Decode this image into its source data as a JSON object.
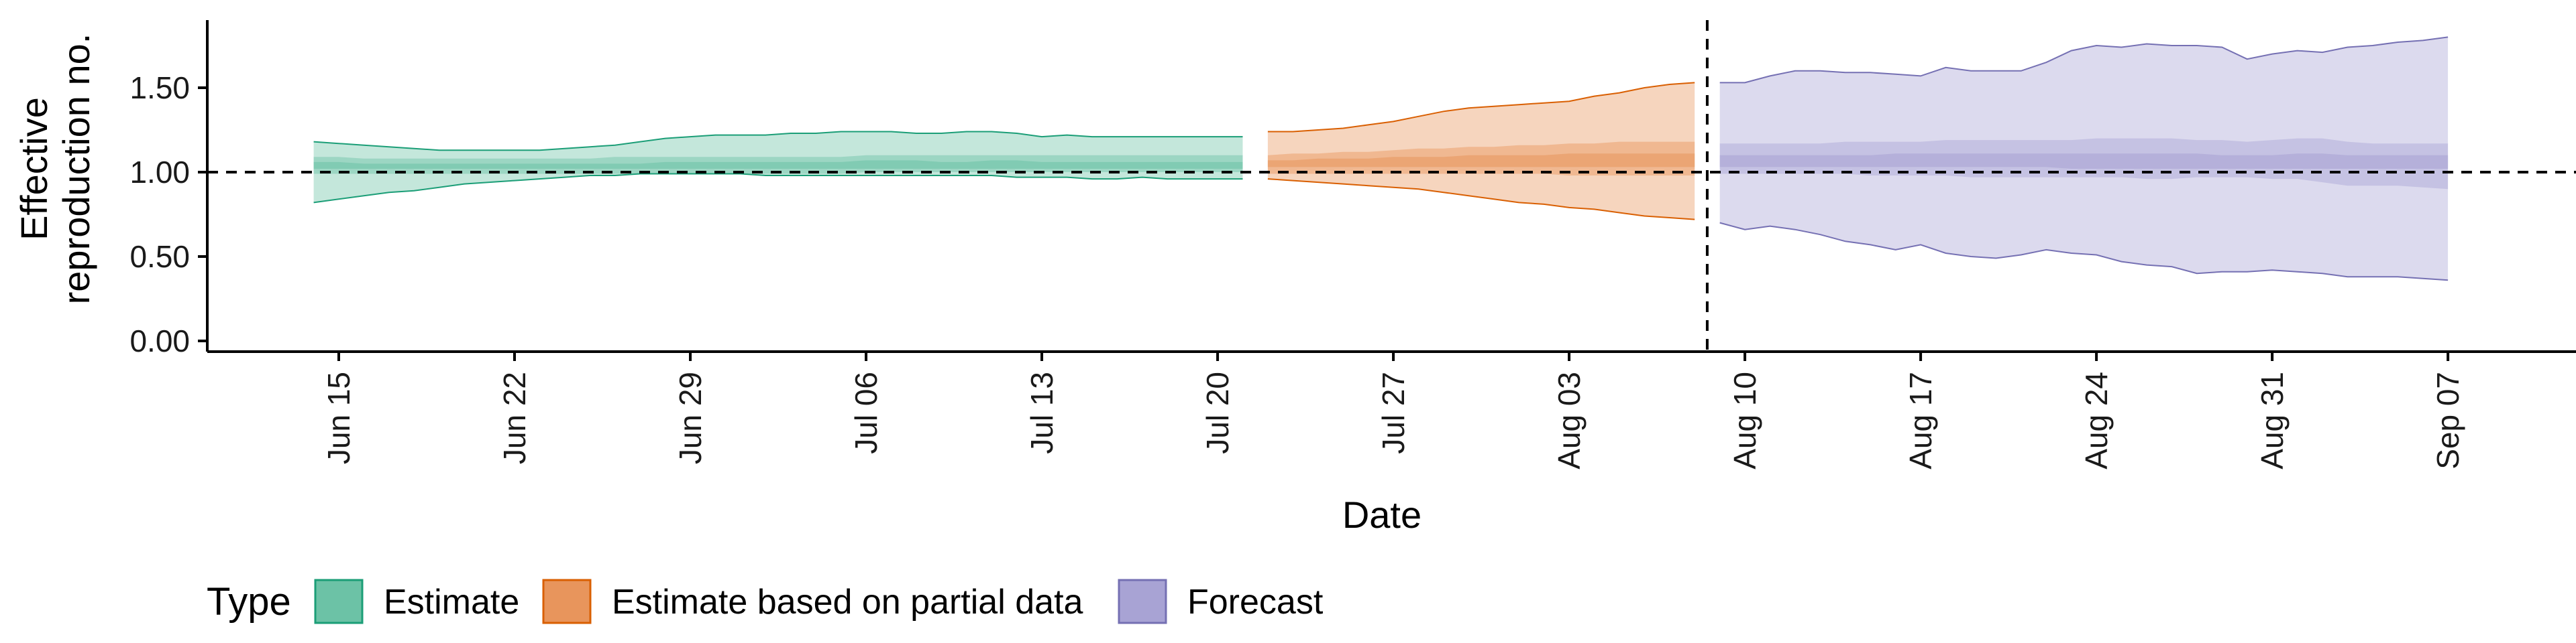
{
  "chart_data": {
    "type": "area",
    "xlabel": "Date",
    "ylabel_lines": [
      "Effective",
      "reproduction no."
    ],
    "ylim": [
      -0.06,
      1.9
    ],
    "y_ticks": [
      {
        "value": 0.0,
        "label": "0.00"
      },
      {
        "value": 0.5,
        "label": "0.50"
      },
      {
        "value": 1.0,
        "label": "1.00"
      },
      {
        "value": 1.5,
        "label": "1.50"
      }
    ],
    "x_range_days": [
      163,
      228
    ],
    "x_ticks": [
      {
        "day": 166,
        "label": "Jun 15"
      },
      {
        "day": 173,
        "label": "Jun 22"
      },
      {
        "day": 180,
        "label": "Jun 29"
      },
      {
        "day": 187,
        "label": "Jul 06"
      },
      {
        "day": 194,
        "label": "Jul 13"
      },
      {
        "day": 201,
        "label": "Jul 20"
      },
      {
        "day": 208,
        "label": "Jul 27"
      },
      {
        "day": 215,
        "label": "Aug 03"
      },
      {
        "day": 222,
        "label": "Aug 10"
      },
      {
        "day": 229,
        "label": "Aug 17"
      },
      {
        "day": 236,
        "label": "Aug 24"
      },
      {
        "day": 243,
        "label": "Aug 31"
      },
      {
        "day": 250,
        "label": "Sep 07"
      }
    ],
    "reference_lines": {
      "horizontal_y": 1.0,
      "vertical_day": 220.5
    },
    "legend": {
      "title": "Type",
      "position": "bottom",
      "items": [
        "Estimate",
        "Estimate based on partial data",
        "Forecast"
      ]
    },
    "colors": {
      "estimate_fill": "#6cc2a6",
      "estimate_line": "#1b9e77",
      "partial_fill": "#e8955c",
      "partial_line": "#d95f02",
      "forecast_fill": "#a8a3d4",
      "forecast_line": "#7570b3"
    },
    "series": [
      {
        "name": "Estimate",
        "days": [
          165,
          166,
          167,
          168,
          169,
          170,
          171,
          172,
          173,
          174,
          175,
          176,
          177,
          178,
          179,
          180,
          181,
          182,
          183,
          184,
          185,
          186,
          187,
          188,
          189,
          190,
          191,
          192,
          193,
          194,
          195,
          196,
          197,
          198,
          199,
          200,
          201,
          202
        ],
        "upper90": [
          1.18,
          1.17,
          1.16,
          1.15,
          1.14,
          1.13,
          1.13,
          1.13,
          1.13,
          1.13,
          1.14,
          1.15,
          1.16,
          1.18,
          1.2,
          1.21,
          1.22,
          1.22,
          1.22,
          1.23,
          1.23,
          1.24,
          1.24,
          1.24,
          1.23,
          1.23,
          1.24,
          1.24,
          1.23,
          1.21,
          1.22,
          1.21,
          1.21,
          1.21,
          1.21,
          1.21,
          1.21,
          1.21
        ],
        "upper50": [
          1.09,
          1.09,
          1.08,
          1.08,
          1.08,
          1.08,
          1.08,
          1.08,
          1.08,
          1.08,
          1.08,
          1.08,
          1.09,
          1.09,
          1.09,
          1.09,
          1.09,
          1.09,
          1.09,
          1.09,
          1.09,
          1.09,
          1.1,
          1.1,
          1.1,
          1.1,
          1.1,
          1.1,
          1.1,
          1.1,
          1.1,
          1.1,
          1.1,
          1.1,
          1.1,
          1.1,
          1.1,
          1.1
        ],
        "upper20": [
          1.06,
          1.06,
          1.05,
          1.05,
          1.05,
          1.05,
          1.05,
          1.05,
          1.05,
          1.05,
          1.05,
          1.05,
          1.05,
          1.05,
          1.06,
          1.06,
          1.06,
          1.06,
          1.06,
          1.06,
          1.06,
          1.06,
          1.07,
          1.07,
          1.07,
          1.06,
          1.06,
          1.07,
          1.07,
          1.06,
          1.06,
          1.06,
          1.06,
          1.06,
          1.06,
          1.06,
          1.06,
          1.06
        ],
        "lower20": [
          1.02,
          1.02,
          1.02,
          1.02,
          1.02,
          1.02,
          1.02,
          1.02,
          1.02,
          1.02,
          1.02,
          1.02,
          1.02,
          1.02,
          1.02,
          1.02,
          1.02,
          1.02,
          1.02,
          1.02,
          1.02,
          1.02,
          1.02,
          1.02,
          1.02,
          1.02,
          1.02,
          1.02,
          1.02,
          1.02,
          1.02,
          1.02,
          1.02,
          1.02,
          1.02,
          1.02,
          1.02,
          1.02
        ],
        "lower50": [
          0.99,
          0.99,
          0.99,
          0.99,
          0.99,
          0.99,
          0.99,
          0.99,
          0.99,
          0.99,
          0.99,
          0.99,
          0.99,
          0.99,
          0.99,
          0.99,
          0.99,
          0.99,
          0.99,
          0.99,
          0.99,
          0.99,
          1.0,
          1.0,
          1.0,
          1.0,
          1.0,
          1.0,
          1.0,
          1.0,
          1.0,
          1.0,
          1.0,
          1.0,
          1.0,
          1.0,
          1.0,
          1.0
        ],
        "lower90": [
          0.82,
          0.84,
          0.86,
          0.88,
          0.89,
          0.91,
          0.93,
          0.94,
          0.95,
          0.96,
          0.97,
          0.98,
          0.98,
          0.99,
          0.99,
          0.99,
          0.99,
          0.99,
          0.98,
          0.98,
          0.98,
          0.98,
          0.98,
          0.98,
          0.98,
          0.98,
          0.98,
          0.98,
          0.97,
          0.97,
          0.97,
          0.96,
          0.96,
          0.97,
          0.96,
          0.96,
          0.96,
          0.96
        ]
      },
      {
        "name": "Estimate based on partial data",
        "days": [
          203,
          204,
          205,
          206,
          207,
          208,
          209,
          210,
          211,
          212,
          213,
          214,
          215,
          216,
          217,
          218,
          219,
          220
        ],
        "upper90": [
          1.24,
          1.24,
          1.25,
          1.26,
          1.28,
          1.3,
          1.33,
          1.36,
          1.38,
          1.39,
          1.4,
          1.41,
          1.42,
          1.45,
          1.47,
          1.5,
          1.52,
          1.53
        ],
        "upper50": [
          1.1,
          1.11,
          1.11,
          1.12,
          1.12,
          1.13,
          1.14,
          1.14,
          1.15,
          1.15,
          1.16,
          1.16,
          1.17,
          1.17,
          1.18,
          1.18,
          1.18,
          1.18
        ],
        "upper20": [
          1.07,
          1.07,
          1.08,
          1.08,
          1.08,
          1.09,
          1.09,
          1.09,
          1.1,
          1.1,
          1.1,
          1.1,
          1.11,
          1.11,
          1.11,
          1.11,
          1.11,
          1.11
        ],
        "lower20": [
          1.03,
          1.03,
          1.03,
          1.03,
          1.03,
          1.03,
          1.03,
          1.03,
          1.03,
          1.03,
          1.03,
          1.03,
          1.03,
          1.03,
          1.03,
          1.03,
          1.03,
          1.03
        ],
        "lower50": [
          0.99,
          0.99,
          0.99,
          0.99,
          0.99,
          0.99,
          0.99,
          0.99,
          0.99,
          0.99,
          0.99,
          0.99,
          0.98,
          0.98,
          0.98,
          0.98,
          0.98,
          0.98
        ],
        "lower90": [
          0.96,
          0.95,
          0.94,
          0.93,
          0.92,
          0.91,
          0.9,
          0.88,
          0.86,
          0.84,
          0.82,
          0.81,
          0.79,
          0.78,
          0.76,
          0.74,
          0.73,
          0.72
        ]
      },
      {
        "name": "Forecast",
        "days": [
          221,
          222,
          223,
          224,
          225,
          226,
          227,
          228,
          229,
          230,
          231,
          232,
          233,
          234,
          235,
          236,
          237,
          238,
          239,
          240,
          241,
          242,
          243,
          244,
          245,
          246,
          247,
          248,
          249,
          250
        ],
        "upper90": [
          1.53,
          1.53,
          1.57,
          1.6,
          1.6,
          1.59,
          1.59,
          1.58,
          1.57,
          1.62,
          1.6,
          1.6,
          1.6,
          1.65,
          1.72,
          1.75,
          1.74,
          1.76,
          1.75,
          1.75,
          1.74,
          1.67,
          1.7,
          1.72,
          1.71,
          1.74,
          1.75,
          1.77,
          1.78,
          1.8
        ],
        "upper50": [
          1.17,
          1.17,
          1.17,
          1.17,
          1.17,
          1.18,
          1.18,
          1.18,
          1.18,
          1.19,
          1.19,
          1.19,
          1.19,
          1.19,
          1.19,
          1.2,
          1.2,
          1.2,
          1.2,
          1.19,
          1.19,
          1.18,
          1.19,
          1.2,
          1.2,
          1.18,
          1.17,
          1.17,
          1.17,
          1.17
        ],
        "upper20": [
          1.1,
          1.1,
          1.1,
          1.1,
          1.1,
          1.1,
          1.1,
          1.11,
          1.11,
          1.11,
          1.11,
          1.11,
          1.11,
          1.11,
          1.11,
          1.11,
          1.11,
          1.11,
          1.11,
          1.11,
          1.1,
          1.1,
          1.1,
          1.11,
          1.11,
          1.1,
          1.1,
          1.1,
          1.1,
          1.1
        ],
        "lower20": [
          1.03,
          1.03,
          1.03,
          1.03,
          1.03,
          1.03,
          1.03,
          1.03,
          1.03,
          1.03,
          1.03,
          1.03,
          1.03,
          1.03,
          1.02,
          1.02,
          1.02,
          1.02,
          1.02,
          1.02,
          1.02,
          1.02,
          1.02,
          1.02,
          1.02,
          1.02,
          1.02,
          1.02,
          1.02,
          1.02
        ],
        "lower50": [
          0.99,
          0.99,
          0.99,
          0.99,
          0.99,
          0.99,
          0.98,
          0.98,
          0.98,
          0.98,
          0.97,
          0.97,
          0.97,
          0.97,
          0.97,
          0.97,
          0.97,
          0.96,
          0.96,
          0.97,
          0.97,
          0.97,
          0.96,
          0.96,
          0.94,
          0.92,
          0.92,
          0.92,
          0.91,
          0.9
        ],
        "lower90": [
          0.7,
          0.66,
          0.68,
          0.66,
          0.63,
          0.59,
          0.57,
          0.54,
          0.57,
          0.52,
          0.5,
          0.49,
          0.51,
          0.54,
          0.52,
          0.51,
          0.47,
          0.45,
          0.44,
          0.4,
          0.41,
          0.41,
          0.42,
          0.41,
          0.4,
          0.38,
          0.38,
          0.38,
          0.37,
          0.36
        ]
      }
    ]
  }
}
